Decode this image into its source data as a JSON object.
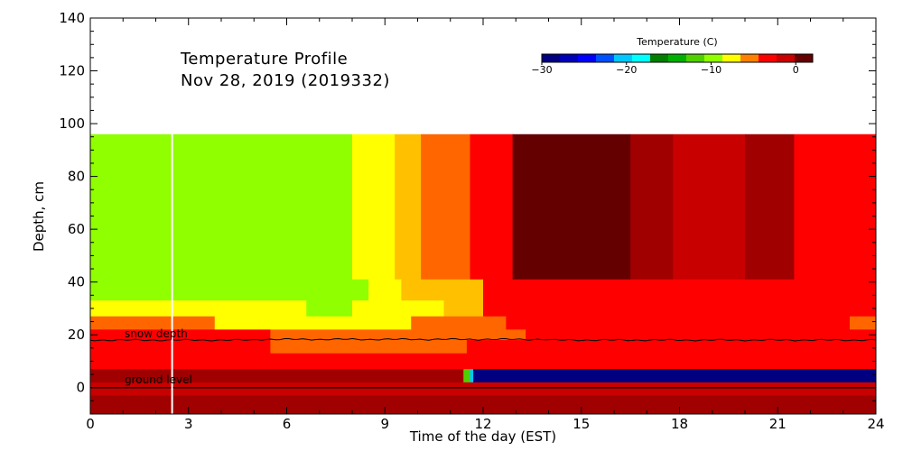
{
  "chart_data": {
    "type": "heatmap",
    "title": "Temperature Profile",
    "subtitle": "Nov 28, 2019 (2019332)",
    "xlabel": "Time of the day (EST)",
    "ylabel": "Depth, cm",
    "xlim": [
      0,
      24
    ],
    "ylim": [
      -10,
      140
    ],
    "x_ticks": [
      "0",
      "3",
      "6",
      "9",
      "12",
      "15",
      "18",
      "21",
      "24"
    ],
    "y_ticks": [
      "0",
      "20",
      "40",
      "60",
      "80",
      "100",
      "120",
      "140"
    ],
    "grid": false,
    "colorbar": {
      "title": "Temperature (C)",
      "range": [
        -30,
        2
      ],
      "tick_labels": [
        "−30",
        "−20",
        "−10",
        "0"
      ],
      "tick_values": [
        -30,
        -20,
        -10,
        0
      ],
      "colors": [
        "#000080",
        "#0000b8",
        "#0000ff",
        "#0050ff",
        "#00c8ff",
        "#00ffff",
        "#008000",
        "#00b000",
        "#50d000",
        "#90ff00",
        "#ffff00",
        "#ff8000",
        "#ff0000",
        "#c80000",
        "#640000"
      ]
    },
    "annotations": [
      {
        "text": "snow depth"
      },
      {
        "text": "ground level"
      }
    ],
    "snow_depth_cm": 18,
    "ground_level_cm": 0,
    "marker_time_hour": 2.5,
    "temperature_bands": [
      {
        "depth_range": [
          41,
          96
        ],
        "segments": [
          {
            "t": [
              0,
              8.0
            ],
            "color": "#90ff00"
          },
          {
            "t": [
              8.0,
              9.3
            ],
            "color": "#ffff00"
          },
          {
            "t": [
              9.3,
              10.1
            ],
            "color": "#ffc000"
          },
          {
            "t": [
              10.1,
              11.6
            ],
            "color": "#ff6600"
          },
          {
            "t": [
              11.6,
              12.9
            ],
            "color": "#ff0000"
          },
          {
            "t": [
              12.9,
              16.5
            ],
            "color": "#640000"
          },
          {
            "t": [
              16.5,
              17.8
            ],
            "color": "#a00000"
          },
          {
            "t": [
              17.8,
              20.0
            ],
            "color": "#c80000"
          },
          {
            "t": [
              20.0,
              21.5
            ],
            "color": "#a00000"
          },
          {
            "t": [
              21.5,
              24
            ],
            "color": "#ff0000"
          }
        ]
      },
      {
        "depth_range": [
          33,
          41
        ],
        "segments": [
          {
            "t": [
              0,
              8.5
            ],
            "color": "#90ff00"
          },
          {
            "t": [
              8.5,
              9.5
            ],
            "color": "#ffff00"
          },
          {
            "t": [
              9.5,
              12.0
            ],
            "color": "#ffc000"
          },
          {
            "t": [
              12.0,
              24
            ],
            "color": "#ff0000"
          }
        ]
      },
      {
        "depth_range": [
          27,
          33
        ],
        "segments": [
          {
            "t": [
              0,
              6.6
            ],
            "color": "#ffff00"
          },
          {
            "t": [
              6.6,
              8.0
            ],
            "color": "#90ff00"
          },
          {
            "t": [
              8.0,
              10.8
            ],
            "color": "#ffff00"
          },
          {
            "t": [
              10.8,
              12.0
            ],
            "color": "#ffc000"
          },
          {
            "t": [
              12.0,
              24
            ],
            "color": "#ff0000"
          }
        ]
      },
      {
        "depth_range": [
          22,
          27
        ],
        "segments": [
          {
            "t": [
              0,
              3.8
            ],
            "color": "#ff6600"
          },
          {
            "t": [
              3.8,
              9.8
            ],
            "color": "#ffff00"
          },
          {
            "t": [
              9.8,
              12.7
            ],
            "color": "#ff6600"
          },
          {
            "t": [
              12.7,
              23.2
            ],
            "color": "#ff0000"
          },
          {
            "t": [
              23.2,
              24
            ],
            "color": "#ff6600"
          }
        ]
      },
      {
        "depth_range": [
          18,
          22
        ],
        "segments": [
          {
            "t": [
              0,
              5.5
            ],
            "color": "#ff0000"
          },
          {
            "t": [
              5.5,
              13.3
            ],
            "color": "#ff6600"
          },
          {
            "t": [
              13.3,
              24
            ],
            "color": "#ff0000"
          }
        ]
      },
      {
        "depth_range": [
          13,
          18
        ],
        "segments": [
          {
            "t": [
              0,
              5.5
            ],
            "color": "#ff0000"
          },
          {
            "t": [
              5.5,
              11.5
            ],
            "color": "#ff6600"
          },
          {
            "t": [
              11.5,
              24
            ],
            "color": "#ff0000"
          }
        ]
      },
      {
        "depth_range": [
          7,
          13
        ],
        "segments": [
          {
            "t": [
              0,
              24
            ],
            "color": "#ff0000"
          }
        ]
      },
      {
        "depth_range": [
          2,
          7
        ],
        "segments": [
          {
            "t": [
              0,
              11.4
            ],
            "color": "#a00000"
          },
          {
            "t": [
              11.4,
              11.6
            ],
            "color": "#50d000"
          },
          {
            "t": [
              11.6,
              11.7
            ],
            "color": "#00c8ff"
          },
          {
            "t": [
              11.7,
              24
            ],
            "color": "#000080"
          }
        ]
      },
      {
        "depth_range": [
          -3,
          2
        ],
        "segments": [
          {
            "t": [
              0,
              24
            ],
            "color": "#c80000"
          }
        ]
      },
      {
        "depth_range": [
          -10,
          -3
        ],
        "segments": [
          {
            "t": [
              0,
              24
            ],
            "color": "#a00000"
          }
        ]
      }
    ]
  }
}
